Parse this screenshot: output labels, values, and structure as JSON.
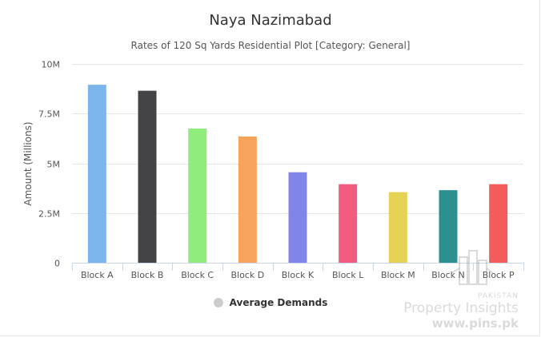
{
  "chart_data": {
    "type": "bar",
    "title": "Naya Nazimabad",
    "subtitle": "Rates of 120 Sq Yards Residential Plot [Category: General]",
    "ylabel": "Amount (Millions)",
    "xlabel": "",
    "ylim": [
      0,
      10000000
    ],
    "yticks": [
      {
        "value": 0,
        "label": "0"
      },
      {
        "value": 2500000,
        "label": "2.5M"
      },
      {
        "value": 5000000,
        "label": "5M"
      },
      {
        "value": 7500000,
        "label": "7.5M"
      },
      {
        "value": 10000000,
        "label": "10M"
      }
    ],
    "categories": [
      "Block A",
      "Block B",
      "Block C",
      "Block D",
      "Block K",
      "Block L",
      "Block M",
      "Block N",
      "Block P"
    ],
    "values": [
      8950000,
      8650000,
      6750000,
      6350000,
      4550000,
      3950000,
      3550000,
      3650000,
      3950000
    ],
    "colors": [
      "#7cb5ec",
      "#434348",
      "#90ed7d",
      "#f7a35c",
      "#8085e9",
      "#f15c80",
      "#e4d354",
      "#2b908f",
      "#f45b5b"
    ],
    "series_name": "Average Demands",
    "legend_position": "bottom-center",
    "grid": true
  },
  "watermark": {
    "country": "PAKISTAN",
    "brand": "Property Insights",
    "url": "www.pins.pk"
  }
}
